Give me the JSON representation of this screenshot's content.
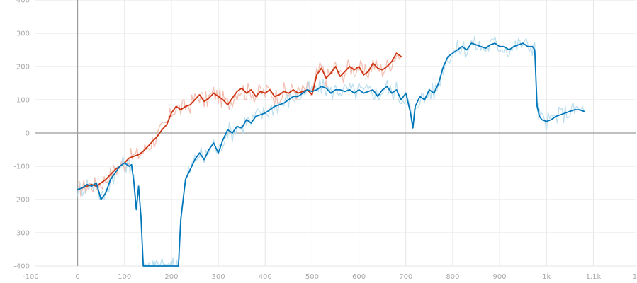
{
  "chart_data": {
    "type": "line",
    "title": "",
    "xlabel": "",
    "ylabel": "",
    "xlim": [
      -90,
      1190
    ],
    "ylim": [
      -400,
      400
    ],
    "grid": true,
    "legend": "none",
    "x_ticks": [
      {
        "value": -100,
        "label": "-100"
      },
      {
        "value": 0,
        "label": "0"
      },
      {
        "value": 100,
        "label": "100"
      },
      {
        "value": 200,
        "label": "200"
      },
      {
        "value": 300,
        "label": "300"
      },
      {
        "value": 400,
        "label": "400"
      },
      {
        "value": 500,
        "label": "500"
      },
      {
        "value": 600,
        "label": "600"
      },
      {
        "value": 700,
        "label": "700"
      },
      {
        "value": 800,
        "label": "800"
      },
      {
        "value": 900,
        "label": "900"
      },
      {
        "value": 1000,
        "label": "1k"
      },
      {
        "value": 1100,
        "label": "1.1k"
      },
      {
        "value": 1200,
        "label": "1.2k"
      }
    ],
    "y_ticks": [
      {
        "value": 400,
        "label": "400"
      },
      {
        "value": 300,
        "label": "300"
      },
      {
        "value": 200,
        "label": "200"
      },
      {
        "value": 100,
        "label": "100"
      },
      {
        "value": 0,
        "label": "0"
      },
      {
        "value": -100,
        "label": "-100"
      },
      {
        "value": -200,
        "label": "-200"
      },
      {
        "value": -300,
        "label": "-300"
      },
      {
        "value": -400,
        "label": "-400"
      }
    ],
    "series": [
      {
        "color": "#cc3311",
        "raw_color": "#f2b8aa",
        "x": [
          0,
          10,
          20,
          30,
          40,
          50,
          60,
          70,
          80,
          90,
          100,
          110,
          120,
          130,
          140,
          150,
          160,
          170,
          180,
          190,
          200,
          210,
          220,
          230,
          240,
          250,
          260,
          270,
          280,
          290,
          300,
          310,
          320,
          330,
          340,
          350,
          360,
          370,
          380,
          390,
          400,
          410,
          420,
          430,
          440,
          450,
          460,
          470,
          480,
          490,
          500,
          510,
          520,
          530,
          540,
          550,
          560,
          570,
          580,
          590,
          600,
          610,
          620,
          630,
          640,
          650,
          660,
          670,
          680,
          690
        ],
        "values": [
          -170,
          -165,
          -160,
          -155,
          -160,
          -150,
          -140,
          -125,
          -110,
          -100,
          -90,
          -75,
          -70,
          -65,
          -55,
          -40,
          -25,
          -10,
          10,
          25,
          60,
          80,
          70,
          80,
          85,
          100,
          115,
          95,
          105,
          120,
          110,
          100,
          85,
          105,
          125,
          135,
          120,
          130,
          110,
          125,
          120,
          130,
          110,
          115,
          125,
          120,
          130,
          120,
          125,
          130,
          115,
          175,
          195,
          165,
          180,
          200,
          170,
          185,
          200,
          190,
          200,
          175,
          185,
          210,
          195,
          190,
          200,
          215,
          240,
          230
        ]
      },
      {
        "color": "#0077bb",
        "raw_color": "#b7dbec",
        "x": [
          0,
          10,
          20,
          30,
          40,
          50,
          60,
          70,
          80,
          90,
          100,
          110,
          115,
          120,
          125,
          130,
          135,
          140,
          145,
          150,
          155,
          160,
          165,
          170,
          180,
          190,
          200,
          205,
          210,
          215,
          220,
          230,
          240,
          250,
          260,
          270,
          280,
          290,
          300,
          310,
          320,
          330,
          340,
          350,
          360,
          370,
          380,
          390,
          400,
          410,
          420,
          430,
          440,
          450,
          460,
          470,
          480,
          490,
          500,
          510,
          520,
          530,
          540,
          550,
          560,
          570,
          580,
          590,
          600,
          610,
          620,
          630,
          640,
          650,
          660,
          670,
          680,
          690,
          700,
          710,
          715,
          720,
          730,
          740,
          750,
          760,
          770,
          780,
          790,
          800,
          810,
          820,
          830,
          840,
          850,
          860,
          870,
          880,
          890,
          900,
          910,
          920,
          930,
          940,
          950,
          960,
          970,
          975,
          980,
          985,
          990,
          1000,
          1010,
          1020,
          1030,
          1040,
          1050,
          1060,
          1070,
          1080
        ],
        "values": [
          -170,
          -165,
          -155,
          -160,
          -150,
          -200,
          -180,
          -140,
          -120,
          -100,
          -90,
          -100,
          -95,
          -150,
          -230,
          -160,
          -250,
          -400,
          -400,
          -400,
          -400,
          -400,
          -400,
          -400,
          -400,
          -400,
          -400,
          -400,
          -400,
          -400,
          -260,
          -140,
          -110,
          -80,
          -60,
          -80,
          -50,
          -30,
          -60,
          -20,
          10,
          0,
          20,
          15,
          40,
          30,
          50,
          55,
          60,
          70,
          80,
          85,
          90,
          100,
          110,
          110,
          120,
          130,
          125,
          130,
          140,
          135,
          120,
          130,
          130,
          125,
          130,
          120,
          130,
          120,
          125,
          130,
          110,
          130,
          140,
          120,
          130,
          100,
          120,
          60,
          15,
          80,
          110,
          100,
          130,
          120,
          150,
          200,
          230,
          240,
          250,
          260,
          250,
          270,
          265,
          260,
          255,
          265,
          270,
          260,
          260,
          250,
          260,
          265,
          270,
          260,
          260,
          250,
          80,
          50,
          40,
          35,
          40,
          50,
          55,
          60,
          65,
          70,
          70,
          65
        ]
      }
    ]
  }
}
